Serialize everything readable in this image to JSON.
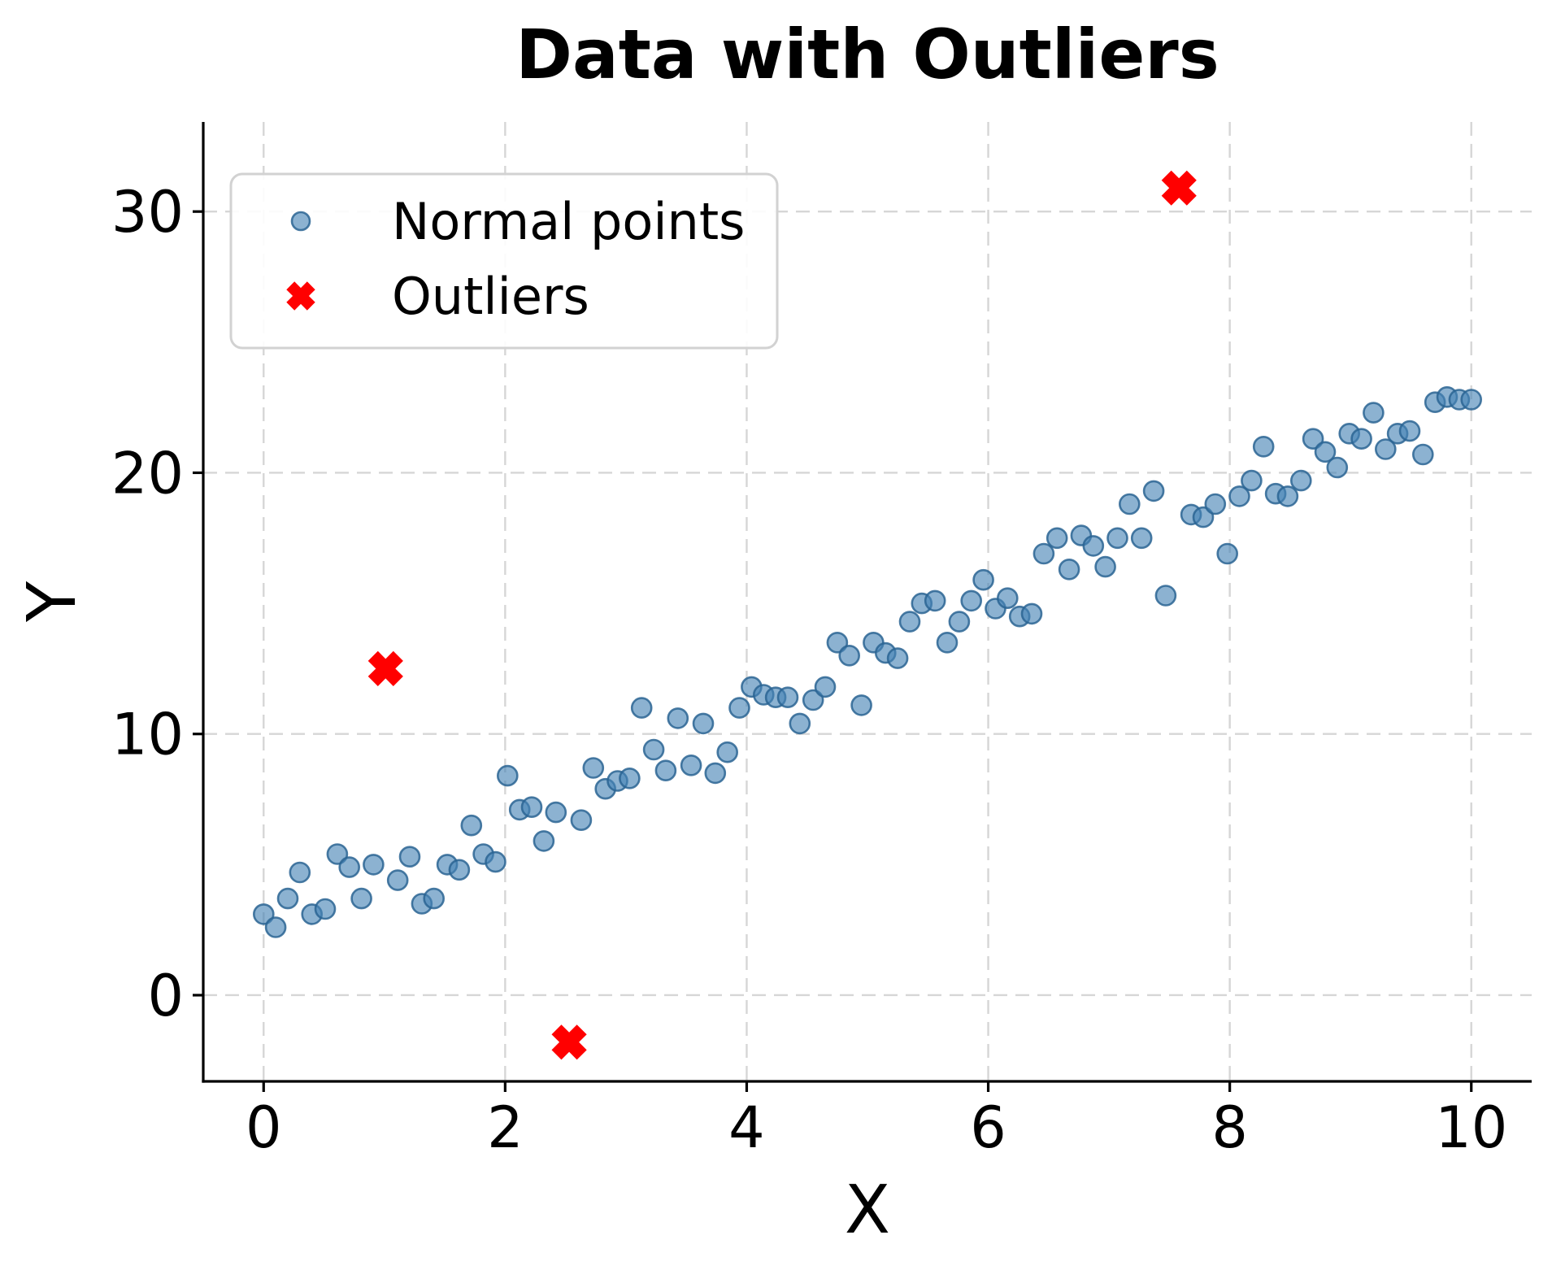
{
  "chart_data": {
    "type": "scatter",
    "title": "Data with Outliers",
    "xlabel": "X",
    "ylabel": "Y",
    "xlim": [
      -0.5,
      10.5
    ],
    "ylim": [
      -3.3,
      33.43
    ],
    "x_ticks": [
      0,
      2,
      4,
      6,
      8,
      10
    ],
    "y_ticks": [
      0,
      10,
      20,
      30
    ],
    "grid": true,
    "legend_position": "upper left",
    "colors": {
      "normal_face": "rgba(70,130,180,0.62)",
      "normal_edge": "rgba(42,100,147,0.85)",
      "outlier": "#ff0000",
      "grid": "#d6d6d6",
      "spine": "#000000",
      "legend_border": "#d2d2d2",
      "background": "#ffffff"
    },
    "series": [
      {
        "name": "Normal points",
        "marker": "circle",
        "face": "rgba(70,130,180,0.62)",
        "edge": "rgba(42,100,147,0.85)",
        "points": [
          [
            0.0,
            3.1
          ],
          [
            0.1,
            2.6
          ],
          [
            0.2,
            3.7
          ],
          [
            0.3,
            4.7
          ],
          [
            0.4,
            3.1
          ],
          [
            0.51,
            3.3
          ],
          [
            0.61,
            5.4
          ],
          [
            0.71,
            4.9
          ],
          [
            0.81,
            3.7
          ],
          [
            0.91,
            5.0
          ],
          [
            1.11,
            4.4
          ],
          [
            1.21,
            5.3
          ],
          [
            1.31,
            3.5
          ],
          [
            1.41,
            3.7
          ],
          [
            1.52,
            5.0
          ],
          [
            1.62,
            4.8
          ],
          [
            1.72,
            6.5
          ],
          [
            1.82,
            5.4
          ],
          [
            1.92,
            5.1
          ],
          [
            2.02,
            8.4
          ],
          [
            2.12,
            7.1
          ],
          [
            2.22,
            7.2
          ],
          [
            2.32,
            5.9
          ],
          [
            2.42,
            7.0
          ],
          [
            2.63,
            6.7
          ],
          [
            2.73,
            8.7
          ],
          [
            2.83,
            7.9
          ],
          [
            2.93,
            8.2
          ],
          [
            3.03,
            8.3
          ],
          [
            3.13,
            11.0
          ],
          [
            3.23,
            9.4
          ],
          [
            3.33,
            8.6
          ],
          [
            3.43,
            10.6
          ],
          [
            3.54,
            8.8
          ],
          [
            3.64,
            10.4
          ],
          [
            3.74,
            8.5
          ],
          [
            3.84,
            9.3
          ],
          [
            3.94,
            11.0
          ],
          [
            4.04,
            11.8
          ],
          [
            4.14,
            11.5
          ],
          [
            4.24,
            11.4
          ],
          [
            4.34,
            11.4
          ],
          [
            4.44,
            10.4
          ],
          [
            4.55,
            11.3
          ],
          [
            4.65,
            11.8
          ],
          [
            4.75,
            13.5
          ],
          [
            4.85,
            13.0
          ],
          [
            4.95,
            11.1
          ],
          [
            5.05,
            13.5
          ],
          [
            5.15,
            13.1
          ],
          [
            5.25,
            12.9
          ],
          [
            5.35,
            14.3
          ],
          [
            5.45,
            15.0
          ],
          [
            5.56,
            15.1
          ],
          [
            5.66,
            13.5
          ],
          [
            5.76,
            14.3
          ],
          [
            5.86,
            15.1
          ],
          [
            5.96,
            15.9
          ],
          [
            6.06,
            14.8
          ],
          [
            6.16,
            15.2
          ],
          [
            6.26,
            14.5
          ],
          [
            6.36,
            14.6
          ],
          [
            6.46,
            16.9
          ],
          [
            6.57,
            17.5
          ],
          [
            6.67,
            16.3
          ],
          [
            6.77,
            17.6
          ],
          [
            6.87,
            17.2
          ],
          [
            6.97,
            16.4
          ],
          [
            7.07,
            17.5
          ],
          [
            7.17,
            18.8
          ],
          [
            7.27,
            17.5
          ],
          [
            7.37,
            19.3
          ],
          [
            7.47,
            15.3
          ],
          [
            7.68,
            18.4
          ],
          [
            7.78,
            18.3
          ],
          [
            7.88,
            18.8
          ],
          [
            7.98,
            16.9
          ],
          [
            8.08,
            19.1
          ],
          [
            8.18,
            19.7
          ],
          [
            8.28,
            21.0
          ],
          [
            8.38,
            19.2
          ],
          [
            8.48,
            19.1
          ],
          [
            8.59,
            19.7
          ],
          [
            8.69,
            21.3
          ],
          [
            8.79,
            20.8
          ],
          [
            8.89,
            20.2
          ],
          [
            8.99,
            21.5
          ],
          [
            9.09,
            21.3
          ],
          [
            9.19,
            22.3
          ],
          [
            9.29,
            20.9
          ],
          [
            9.39,
            21.5
          ],
          [
            9.49,
            21.6
          ],
          [
            9.6,
            20.7
          ],
          [
            9.7,
            22.7
          ],
          [
            9.8,
            22.9
          ],
          [
            9.9,
            22.8
          ],
          [
            10.0,
            22.8
          ]
        ]
      },
      {
        "name": "Outliers",
        "marker": "X",
        "face": "#ff0000",
        "edge": "#ff0000",
        "points": [
          [
            1.01,
            12.5
          ],
          [
            2.53,
            -1.8
          ],
          [
            7.58,
            30.9
          ]
        ]
      }
    ]
  }
}
